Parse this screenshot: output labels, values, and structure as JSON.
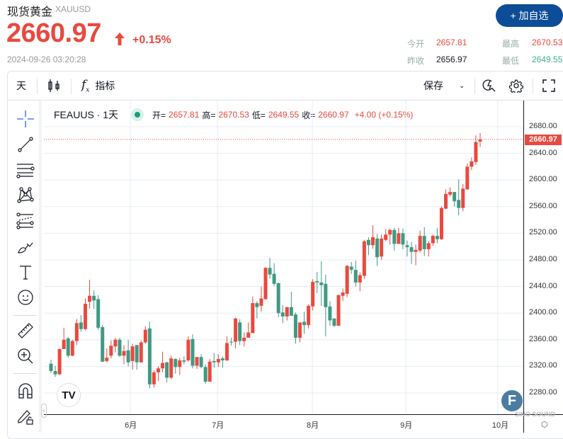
{
  "header": {
    "title": "现货黄金",
    "symbol": "XAUUSD",
    "price": "2660.97",
    "change_pct": "+0.15%",
    "timestamp": "2024-09-26 03:20:28",
    "add_button": "+ 加自选"
  },
  "quote": {
    "open_label": "今开",
    "open": "2657.81",
    "prev_label": "昨收",
    "prev": "2656.97",
    "high_label": "最高",
    "high": "2670.53",
    "low_label": "最低",
    "low": "2649.55"
  },
  "toolbar": {
    "interval": "天",
    "indicators": "指标",
    "save": "保存"
  },
  "legend": {
    "symbol": "FEAUUS · 1天",
    "o_label": "开=",
    "o": "2657.81",
    "h_label": "高=",
    "h": "2670.53",
    "l_label": "低=",
    "l": "2649.55",
    "c_label": "收=",
    "c": "2660.97",
    "change": "+4.00 (+0.15%)"
  },
  "colors": {
    "up": "#e9493f",
    "down": "#3f9a82",
    "accent": "#0d4c97",
    "crosshair": "#2962ff"
  },
  "chart_data": {
    "type": "candlestick",
    "title": "FEAUUS · 1天",
    "ylim": [
      2255,
      2716
    ],
    "yticks": [
      "2280.00",
      "2320.00",
      "2360.00",
      "2400.00",
      "2440.00",
      "2480.00",
      "2520.00",
      "2560.00",
      "2600.00",
      "2640.00",
      "2680.00"
    ],
    "current_price": "2660.97",
    "xticks": [
      {
        "label": "6月",
        "index": 18.5
      },
      {
        "label": "7月",
        "index": 38.8
      },
      {
        "label": "8月",
        "index": 60.9
      },
      {
        "label": "9月",
        "index": 82.7
      },
      {
        "label": "10月",
        "index": 104.1
      }
    ],
    "candles_ohlc": [
      [
        2324,
        2330,
        2310,
        2313
      ],
      [
        2313,
        2321,
        2304,
        2308
      ],
      [
        2308,
        2347,
        2307,
        2346
      ],
      [
        2346,
        2378,
        2346,
        2360
      ],
      [
        2362,
        2364,
        2333,
        2336
      ],
      [
        2336,
        2360,
        2335,
        2358
      ],
      [
        2358,
        2391,
        2352,
        2385
      ],
      [
        2386,
        2397,
        2372,
        2376
      ],
      [
        2376,
        2422,
        2374,
        2414
      ],
      [
        2417,
        2450,
        2407,
        2426
      ],
      [
        2426,
        2434,
        2406,
        2419
      ],
      [
        2421,
        2427,
        2375,
        2378
      ],
      [
        2379,
        2382,
        2327,
        2327
      ],
      [
        2328,
        2347,
        2326,
        2333
      ],
      [
        2336,
        2359,
        2332,
        2351
      ],
      [
        2350,
        2363,
        2341,
        2360
      ],
      [
        2360,
        2363,
        2334,
        2336
      ],
      [
        2336,
        2352,
        2323,
        2343
      ],
      [
        2344,
        2360,
        2320,
        2326
      ],
      [
        2328,
        2354,
        2315,
        2350
      ],
      [
        2352,
        2352,
        2315,
        2326
      ],
      [
        2326,
        2359,
        2326,
        2356
      ],
      [
        2356,
        2380,
        2354,
        2375
      ],
      [
        2377,
        2387,
        2287,
        2293
      ],
      [
        2293,
        2314,
        2288,
        2311
      ],
      [
        2311,
        2320,
        2298,
        2317
      ],
      [
        2317,
        2342,
        2311,
        2325
      ],
      [
        2326,
        2327,
        2296,
        2303
      ],
      [
        2303,
        2336,
        2301,
        2332
      ],
      [
        2331,
        2332,
        2309,
        2319
      ],
      [
        2319,
        2333,
        2307,
        2329
      ],
      [
        2329,
        2335,
        2323,
        2327
      ],
      [
        2329,
        2365,
        2327,
        2360
      ],
      [
        2361,
        2368,
        2317,
        2321
      ],
      [
        2321,
        2334,
        2316,
        2334
      ],
      [
        2334,
        2338,
        2317,
        2319
      ],
      [
        2319,
        2323,
        2294,
        2297
      ],
      [
        2297,
        2331,
        2297,
        2327
      ],
      [
        2328,
        2340,
        2318,
        2326
      ],
      [
        2326,
        2338,
        2319,
        2331
      ],
      [
        2332,
        2335,
        2318,
        2329
      ],
      [
        2329,
        2365,
        2328,
        2355
      ],
      [
        2357,
        2363,
        2351,
        2356
      ],
      [
        2357,
        2393,
        2347,
        2392
      ],
      [
        2386,
        2391,
        2352,
        2358
      ],
      [
        2358,
        2371,
        2350,
        2363
      ],
      [
        2363,
        2386,
        2363,
        2371
      ],
      [
        2370,
        2425,
        2370,
        2415
      ],
      [
        2415,
        2418,
        2392,
        2409
      ],
      [
        2411,
        2440,
        2402,
        2422
      ],
      [
        2421,
        2469,
        2420,
        2468
      ],
      [
        2468,
        2483,
        2452,
        2458
      ],
      [
        2459,
        2475,
        2441,
        2444
      ],
      [
        2445,
        2446,
        2394,
        2400
      ],
      [
        2401,
        2412,
        2385,
        2395
      ],
      [
        2395,
        2409,
        2389,
        2409
      ],
      [
        2409,
        2432,
        2396,
        2396
      ],
      [
        2398,
        2401,
        2354,
        2363
      ],
      [
        2363,
        2386,
        2356,
        2386
      ],
      [
        2387,
        2402,
        2369,
        2382
      ],
      [
        2382,
        2413,
        2377,
        2411
      ],
      [
        2410,
        2451,
        2404,
        2447
      ],
      [
        2448,
        2462,
        2430,
        2446
      ],
      [
        2446,
        2478,
        2411,
        2442
      ],
      [
        2444,
        2458,
        2365,
        2409
      ],
      [
        2410,
        2418,
        2381,
        2389
      ],
      [
        2392,
        2392,
        2379,
        2381
      ],
      [
        2381,
        2428,
        2381,
        2427
      ],
      [
        2426,
        2437,
        2418,
        2431
      ],
      [
        2429,
        2472,
        2424,
        2471
      ],
      [
        2470,
        2477,
        2459,
        2465
      ],
      [
        2465,
        2479,
        2440,
        2446
      ],
      [
        2446,
        2461,
        2433,
        2457
      ],
      [
        2456,
        2510,
        2451,
        2508
      ],
      [
        2510,
        2514,
        2487,
        2502
      ],
      [
        2502,
        2532,
        2497,
        2514
      ],
      [
        2512,
        2519,
        2471,
        2484
      ],
      [
        2485,
        2518,
        2480,
        2512
      ],
      [
        2510,
        2526,
        2508,
        2518
      ],
      [
        2518,
        2527,
        2503,
        2525
      ],
      [
        2525,
        2528,
        2494,
        2504
      ],
      [
        2504,
        2528,
        2505,
        2520
      ],
      [
        2520,
        2527,
        2496,
        2503
      ],
      [
        2502,
        2509,
        2485,
        2499
      ],
      [
        2499,
        2507,
        2474,
        2492
      ],
      [
        2492,
        2503,
        2472,
        2495
      ],
      [
        2494,
        2524,
        2491,
        2516
      ],
      [
        2516,
        2529,
        2486,
        2496
      ],
      [
        2496,
        2508,
        2485,
        2505
      ],
      [
        2505,
        2518,
        2501,
        2516
      ],
      [
        2516,
        2528,
        2505,
        2511
      ],
      [
        2511,
        2560,
        2510,
        2558
      ],
      [
        2557,
        2586,
        2556,
        2579
      ],
      [
        2578,
        2589,
        2575,
        2582
      ],
      [
        2582,
        2582,
        2560,
        2568
      ],
      [
        2570,
        2601,
        2547,
        2558
      ],
      [
        2558,
        2594,
        2553,
        2587
      ],
      [
        2586,
        2625,
        2585,
        2620
      ],
      [
        2620,
        2634,
        2615,
        2628
      ],
      [
        2627,
        2667,
        2623,
        2657
      ],
      [
        2657.81,
        2670.53,
        2649.55,
        2660.97
      ]
    ]
  }
}
